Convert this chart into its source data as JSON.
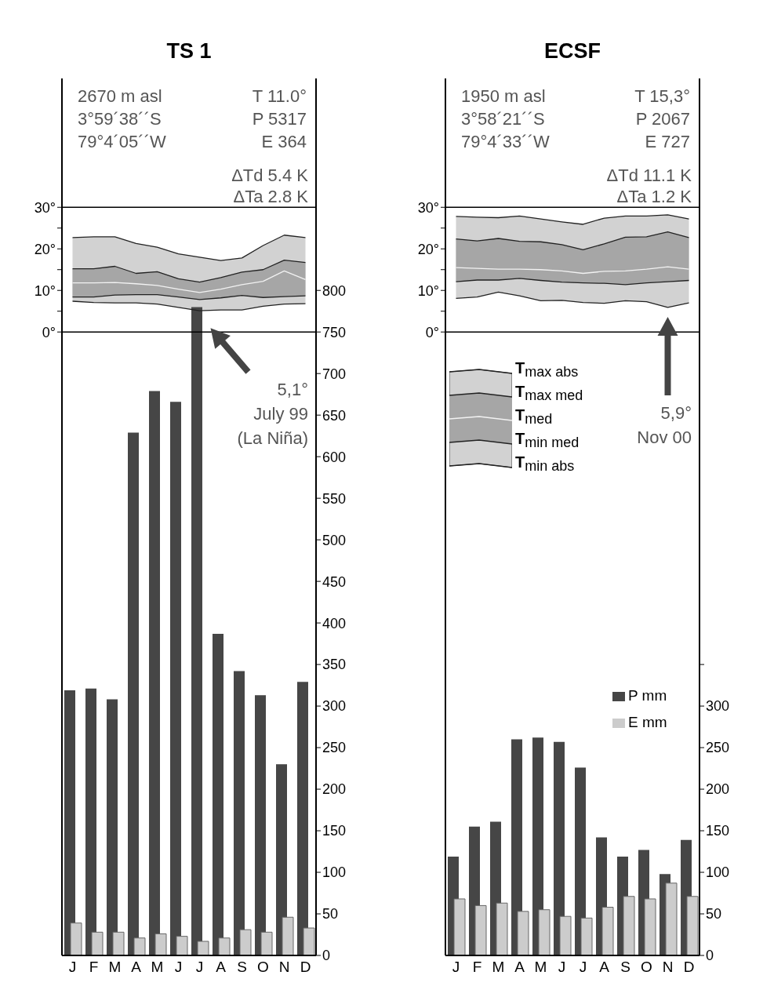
{
  "chart_data": [
    {
      "type": "bar",
      "title": "TS 1",
      "categories": [
        "J",
        "F",
        "M",
        "A",
        "M",
        "J",
        "J",
        "A",
        "S",
        "O",
        "N",
        "D"
      ],
      "annotations": [
        "2670 m asl",
        "3°59´38´´S",
        "79°4´05´´W",
        "T 11.0°",
        "P 5317",
        "E 364",
        "ΔTd 5.4 K",
        "ΔTa 2.8 K",
        "5,1°",
        "July 99",
        "(La Niña)"
      ],
      "ylim": [
        -150,
        61
      ],
      "yticks": [
        {
          "value": 0,
          "label": "0°"
        },
        {
          "value": 5,
          "label": null
        },
        {
          "value": 10,
          "label": "10°"
        },
        {
          "value": 15,
          "label": null
        },
        {
          "value": 20,
          "label": "20°"
        },
        {
          "value": 25,
          "label": null
        },
        {
          "value": 30,
          "label": "30°"
        }
      ],
      "y2lim": [
        0,
        1055
      ],
      "y2ticks": [
        0,
        50,
        100,
        150,
        200,
        250,
        300,
        350,
        400,
        450,
        500,
        550,
        600,
        650,
        700,
        750,
        800
      ],
      "ref_lines": [
        {
          "axis": "y",
          "value": 0
        },
        {
          "axis": "y",
          "value": 30
        }
      ],
      "series": [
        {
          "type": "line",
          "color": "#222222",
          "values": [
            22.7,
            22.9,
            22.9,
            21.3,
            20.4,
            18.8,
            18.0,
            17.2,
            17.8,
            20.8,
            23.3,
            22.7
          ],
          "lower": [
            7.4,
            7.1,
            7.0,
            7.0,
            6.7,
            5.9,
            5.1,
            5.3,
            5.3,
            6.2,
            6.7,
            6.8
          ],
          "upper": [
            22.7,
            22.9,
            22.9,
            21.3,
            20.4,
            18.8,
            18.0,
            17.2,
            17.8,
            20.8,
            23.3,
            22.7
          ]
        },
        {
          "type": "line",
          "color": "#222222",
          "values": [
            15.2,
            15.2,
            15.8,
            14.1,
            14.5,
            12.8,
            12.0,
            13.1,
            14.4,
            15.0,
            17.3,
            16.7
          ]
        },
        {
          "type": "line",
          "color": "#f2f2f2",
          "values": [
            11.8,
            11.8,
            11.9,
            11.6,
            11.2,
            10.3,
            9.5,
            10.3,
            11.4,
            12.2,
            14.7,
            12.6
          ],
          "lower": [
            8.4,
            8.4,
            8.9,
            9.0,
            9.0,
            8.4,
            7.8,
            8.2,
            8.8,
            8.3,
            8.5,
            8.7
          ],
          "upper": [
            15.2,
            15.2,
            15.8,
            14.1,
            14.5,
            12.8,
            12.0,
            13.1,
            14.4,
            15.0,
            17.3,
            16.7
          ]
        },
        {
          "type": "line",
          "color": "#222222",
          "values": [
            8.4,
            8.4,
            8.9,
            9.0,
            9.0,
            8.4,
            7.8,
            8.2,
            8.8,
            8.3,
            8.5,
            8.7
          ]
        },
        {
          "type": "line",
          "color": "#222222",
          "values": [
            7.4,
            7.1,
            7.0,
            7.0,
            6.7,
            5.9,
            5.1,
            5.3,
            5.3,
            6.2,
            6.7,
            6.8
          ]
        },
        {
          "axis": "y2",
          "color": "#464646",
          "values": [
            319,
            321,
            308,
            629,
            679,
            666,
            780,
            387,
            342,
            313,
            230,
            329
          ]
        },
        {
          "axis": "y2",
          "color": "#cccccc",
          "values": [
            39,
            28,
            28,
            21,
            26,
            23,
            17,
            21,
            31,
            28,
            46,
            33
          ]
        }
      ]
    },
    {
      "type": "bar",
      "title": "ECSF",
      "categories": [
        "J",
        "F",
        "M",
        "A",
        "M",
        "J",
        "J",
        "A",
        "S",
        "O",
        "N",
        "D"
      ],
      "annotations": [
        "1950 m asl",
        "3°58´21´´S",
        "79°4´33´´W",
        "T 15,3°",
        "P 2067",
        "E 727",
        "ΔTd 11.1 K",
        "ΔTa 1.2 K",
        "5,9°",
        "Nov 00"
      ],
      "ylim": [
        -150,
        61
      ],
      "yticks": [
        {
          "value": 0,
          "label": "0°"
        },
        {
          "value": 5,
          "label": null
        },
        {
          "value": 10,
          "label": "10°"
        },
        {
          "value": 15,
          "label": null
        },
        {
          "value": 20,
          "label": "20°"
        },
        {
          "value": 25,
          "label": null
        },
        {
          "value": 30,
          "label": "30°"
        }
      ],
      "y2lim": [
        0,
        1055
      ],
      "y2ticks": [
        0,
        50,
        100,
        150,
        200,
        250,
        300,
        {
          "value": 350,
          "label": null
        }
      ],
      "ref_lines": [
        {
          "axis": "y",
          "value": 0
        },
        {
          "axis": "y",
          "value": 30
        }
      ],
      "legend": "center",
      "series": [
        {
          "type": "line",
          "name": "T$_{max abs}$",
          "color": "#222222",
          "values": [
            27.8,
            27.6,
            27.5,
            27.9,
            27.2,
            26.5,
            25.9,
            27.4,
            27.9,
            27.9,
            28.2,
            27.2
          ],
          "lower": [
            8.1,
            8.4,
            9.6,
            8.7,
            7.5,
            7.6,
            7.1,
            6.9,
            7.5,
            7.3,
            5.9,
            7.0
          ],
          "upper": [
            27.8,
            27.6,
            27.5,
            27.9,
            27.2,
            26.5,
            25.9,
            27.4,
            27.9,
            27.9,
            28.2,
            27.2
          ]
        },
        {
          "type": "line",
          "name": "T$_{max med}$",
          "color": "#222222",
          "values": [
            22.4,
            21.9,
            22.5,
            21.8,
            21.7,
            21.0,
            19.8,
            21.2,
            22.8,
            22.9,
            24.1,
            22.7
          ]
        },
        {
          "type": "line",
          "name": "T$_{med}$",
          "color": "#f2f2f2",
          "values": [
            15.5,
            15.3,
            15.1,
            15.1,
            15.0,
            14.7,
            14.1,
            14.6,
            14.7,
            15.1,
            15.7,
            15.1
          ],
          "lower": [
            12.1,
            12.5,
            12.5,
            12.9,
            12.4,
            12.0,
            11.8,
            11.7,
            11.4,
            11.8,
            12.1,
            12.4
          ],
          "upper": [
            22.4,
            21.9,
            22.5,
            21.8,
            21.7,
            21.0,
            19.8,
            21.2,
            22.8,
            22.9,
            24.1,
            22.7
          ]
        },
        {
          "type": "line",
          "name": "T$_{min med}$",
          "color": "#222222",
          "values": [
            12.1,
            12.5,
            12.5,
            12.9,
            12.4,
            12.0,
            11.8,
            11.7,
            11.4,
            11.8,
            12.1,
            12.4
          ]
        },
        {
          "type": "line",
          "name": "T$_{min abs}$",
          "color": "#222222",
          "values": [
            8.1,
            8.4,
            9.6,
            8.7,
            7.5,
            7.6,
            7.1,
            6.9,
            7.5,
            7.3,
            5.9,
            7.0
          ]
        },
        {
          "axis": "y2",
          "name": "P mm",
          "color": "#464646",
          "values": [
            119,
            155,
            161,
            260,
            262,
            257,
            226,
            142,
            119,
            127,
            98,
            139
          ]
        },
        {
          "axis": "y2",
          "name": "E mm",
          "color": "#cccccc",
          "values": [
            68,
            60,
            63,
            53,
            55,
            47,
            45,
            58,
            71,
            68,
            87,
            71
          ]
        }
      ]
    }
  ]
}
